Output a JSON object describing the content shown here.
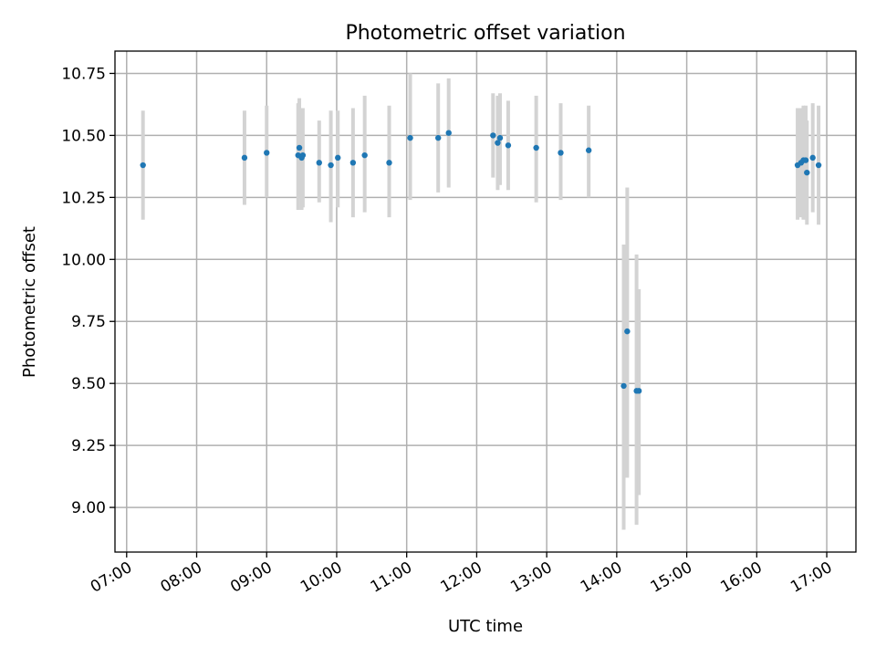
{
  "chart_data": {
    "type": "scatter",
    "title": "Photometric offset variation",
    "xlabel": "UTC time",
    "ylabel": "Photometric offset",
    "xlim": [
      "06:50",
      "17:25"
    ],
    "ylim": [
      8.82,
      10.84
    ],
    "x_ticks": [
      "07:00",
      "08:00",
      "09:00",
      "10:00",
      "11:00",
      "12:00",
      "13:00",
      "14:00",
      "15:00",
      "16:00",
      "17:00"
    ],
    "y_ticks": [
      "9.00",
      "9.25",
      "9.50",
      "9.75",
      "10.00",
      "10.25",
      "10.50",
      "10.75"
    ],
    "grid": true,
    "colors": {
      "points": "#1f77b4",
      "error_bars": "#d3d3d3",
      "grid": "#b0b0b0"
    },
    "series": [
      {
        "points": [
          {
            "x": "07:14",
            "y": 10.38,
            "ylo": 10.16,
            "yhi": 10.6
          },
          {
            "x": "08:41",
            "y": 10.41,
            "ylo": 10.22,
            "yhi": 10.6
          },
          {
            "x": "09:00",
            "y": 10.43,
            "ylo": 10.25,
            "yhi": 10.62
          },
          {
            "x": "09:27",
            "y": 10.42,
            "ylo": 10.2,
            "yhi": 10.63
          },
          {
            "x": "09:28",
            "y": 10.45,
            "ylo": 10.25,
            "yhi": 10.65
          },
          {
            "x": "09:30",
            "y": 10.41,
            "ylo": 10.2,
            "yhi": 10.6
          },
          {
            "x": "09:31",
            "y": 10.42,
            "ylo": 10.21,
            "yhi": 10.61
          },
          {
            "x": "09:45",
            "y": 10.39,
            "ylo": 10.23,
            "yhi": 10.56
          },
          {
            "x": "09:55",
            "y": 10.38,
            "ylo": 10.15,
            "yhi": 10.6
          },
          {
            "x": "10:01",
            "y": 10.41,
            "ylo": 10.21,
            "yhi": 10.6
          },
          {
            "x": "10:14",
            "y": 10.39,
            "ylo": 10.17,
            "yhi": 10.61
          },
          {
            "x": "10:24",
            "y": 10.42,
            "ylo": 10.19,
            "yhi": 10.66
          },
          {
            "x": "10:45",
            "y": 10.39,
            "ylo": 10.17,
            "yhi": 10.62
          },
          {
            "x": "11:03",
            "y": 10.49,
            "ylo": 10.24,
            "yhi": 10.75
          },
          {
            "x": "11:27",
            "y": 10.49,
            "ylo": 10.27,
            "yhi": 10.71
          },
          {
            "x": "11:36",
            "y": 10.51,
            "ylo": 10.29,
            "yhi": 10.73
          },
          {
            "x": "12:14",
            "y": 10.5,
            "ylo": 10.33,
            "yhi": 10.67
          },
          {
            "x": "12:18",
            "y": 10.47,
            "ylo": 10.28,
            "yhi": 10.66
          },
          {
            "x": "12:20",
            "y": 10.49,
            "ylo": 10.3,
            "yhi": 10.67
          },
          {
            "x": "12:27",
            "y": 10.46,
            "ylo": 10.28,
            "yhi": 10.64
          },
          {
            "x": "12:51",
            "y": 10.45,
            "ylo": 10.23,
            "yhi": 10.66
          },
          {
            "x": "13:12",
            "y": 10.43,
            "ylo": 10.24,
            "yhi": 10.63
          },
          {
            "x": "13:36",
            "y": 10.44,
            "ylo": 10.25,
            "yhi": 10.62
          },
          {
            "x": "14:06",
            "y": 9.49,
            "ylo": 8.91,
            "yhi": 10.06
          },
          {
            "x": "14:09",
            "y": 9.71,
            "ylo": 9.12,
            "yhi": 10.29
          },
          {
            "x": "14:17",
            "y": 9.47,
            "ylo": 8.93,
            "yhi": 10.02
          },
          {
            "x": "14:19",
            "y": 9.47,
            "ylo": 9.05,
            "yhi": 9.88
          },
          {
            "x": "16:35",
            "y": 10.38,
            "ylo": 10.16,
            "yhi": 10.61
          },
          {
            "x": "16:38",
            "y": 10.39,
            "ylo": 10.17,
            "yhi": 10.61
          },
          {
            "x": "16:40",
            "y": 10.4,
            "ylo": 10.16,
            "yhi": 10.62
          },
          {
            "x": "16:42",
            "y": 10.4,
            "ylo": 10.17,
            "yhi": 10.62
          },
          {
            "x": "16:43",
            "y": 10.35,
            "ylo": 10.14,
            "yhi": 10.56
          },
          {
            "x": "16:48",
            "y": 10.41,
            "ylo": 10.19,
            "yhi": 10.63
          },
          {
            "x": "16:53",
            "y": 10.38,
            "ylo": 10.14,
            "yhi": 10.62
          }
        ]
      }
    ]
  }
}
